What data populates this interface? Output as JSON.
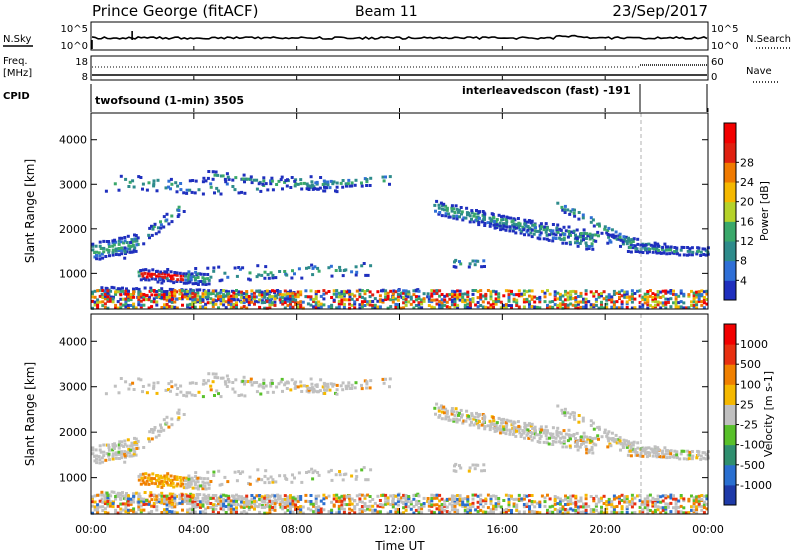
{
  "header": {
    "title": "Prince George (fitACF)",
    "beam": "Beam 11",
    "date": "23/Sep/2017"
  },
  "noise_panel": {
    "left_label": "N.Sky",
    "right_label": "N.Search",
    "left_ticks": [
      "10^5",
      "10^0"
    ],
    "right_ticks": [
      "10^5",
      "10^0"
    ]
  },
  "freq_panel": {
    "label": "Freq.",
    "unit": "[MHz]",
    "left_ticks": [
      "18",
      "8"
    ],
    "right_ticks": [
      "60",
      "0"
    ],
    "right_label": "Nave"
  },
  "cpid_panel": {
    "label": "CPID",
    "program_1": "twofsound (1-min) 3505",
    "program_2": "interleavedscon (fast) -191"
  },
  "axes": {
    "ylabel": "Slant Range [km]",
    "y_ticks": [
      "1000",
      "2000",
      "3000",
      "4000"
    ],
    "x_ticks": [
      "00:00",
      "04:00",
      "08:00",
      "12:00",
      "16:00",
      "20:00",
      "00:00"
    ],
    "xlabel": "Time UT"
  },
  "colors": {
    "background": "#ffffff",
    "missing_value": "#c0c0c0",
    "mode_change_line": "#b0b0b0"
  },
  "chart_data": [
    {
      "type": "heatmap",
      "title": "",
      "xlabel": "",
      "ylabel": "Slant Range [km]",
      "xlim": [
        "00:00",
        "24:00"
      ],
      "ylim": [
        200,
        4600
      ],
      "colorbar": {
        "label": "Power [dB]",
        "ticks": [
          "4",
          "8",
          "12",
          "16",
          "20",
          "24",
          "28"
        ],
        "colors": [
          "#1f2fbe",
          "#2f6fd6",
          "#2e8b8b",
          "#3aa86a",
          "#b5d22a",
          "#f5b800",
          "#f07a00",
          "#e02010",
          "#f30000"
        ]
      }
    },
    {
      "type": "heatmap",
      "title": "",
      "xlabel": "Time UT",
      "ylabel": "Slant Range [km]",
      "xlim": [
        "00:00",
        "24:00"
      ],
      "ylim": [
        200,
        4600
      ],
      "colorbar": {
        "label": "Velocity [m s-1]",
        "ticks": [
          "1000",
          "500",
          "100",
          "25",
          "-25",
          "-100",
          "-500",
          "-1000"
        ],
        "colors": [
          "#1e3aa8",
          "#2a6fd0",
          "#2f8f6f",
          "#58c02a",
          "#c0c0c0",
          "#f5b800",
          "#f08000",
          "#e83010",
          "#f20000"
        ]
      }
    }
  ]
}
